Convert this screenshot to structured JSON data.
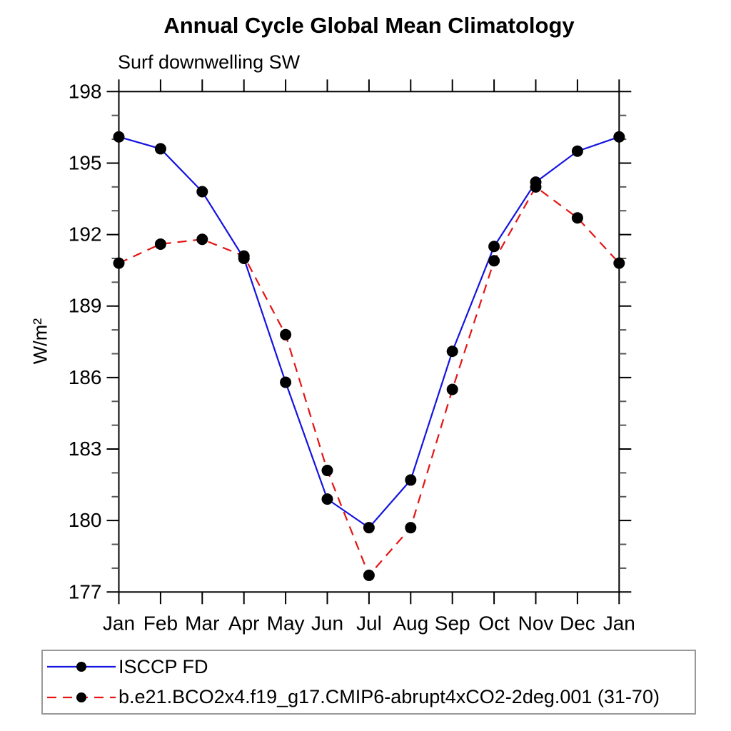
{
  "chart_data": {
    "type": "line",
    "title": "Annual Cycle Global Mean Climatology",
    "subtitle": "Surf downwelling SW",
    "ylabel": "W/m²",
    "xlabel": "",
    "categories": [
      "Jan",
      "Feb",
      "Mar",
      "Apr",
      "May",
      "Jun",
      "Jul",
      "Aug",
      "Sep",
      "Oct",
      "Nov",
      "Dec",
      "Jan"
    ],
    "ylim": [
      177,
      198
    ],
    "ytick_major": [
      177,
      180,
      183,
      186,
      189,
      192,
      195,
      198
    ],
    "ytick_minor_step": 1,
    "grid": false,
    "legend_position": "bottom",
    "axis_color": "#000000",
    "marker_color": "#000000",
    "series": [
      {
        "name": "ISCCP FD",
        "color": "#1414e0",
        "style": "solid",
        "marker": "filled-circle",
        "values": [
          196.1,
          195.6,
          193.8,
          191.0,
          185.8,
          180.9,
          179.7,
          181.7,
          187.1,
          191.5,
          194.2,
          195.5,
          196.1
        ]
      },
      {
        "name": "b.e21.BCO2x4.f19_g17.CMIP6-abrupt4xCO2-2deg.001 (31-70)",
        "color": "#e61414",
        "style": "dashed",
        "marker": "filled-circle",
        "values": [
          190.8,
          191.6,
          191.8,
          191.1,
          187.8,
          182.1,
          177.7,
          179.7,
          185.5,
          190.9,
          194.0,
          192.7,
          190.8
        ]
      }
    ]
  }
}
